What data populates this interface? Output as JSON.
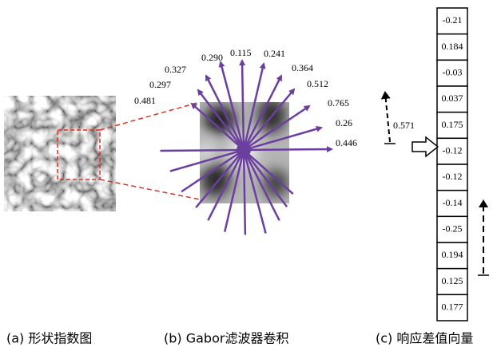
{
  "panel_b": {
    "ray_labels": [
      "0.481",
      "0.297",
      "0.327",
      "0.290",
      "0.115",
      "0.241",
      "0.364",
      "0.512",
      "0.765",
      "0.26",
      "0.446"
    ]
  },
  "panel_c": {
    "cells": [
      "-0.21",
      "0.184",
      "-0.03",
      "0.037",
      "0.175",
      "-0.12",
      "-0.12",
      "-0.14",
      "-0.25",
      "0.194",
      "0.125",
      "0.177"
    ],
    "arrow_label": "0.571"
  },
  "captions": [
    "(a) 形状指数图",
    "(b) Gabor滤波器卷积",
    "(c) 响应差值向量"
  ]
}
